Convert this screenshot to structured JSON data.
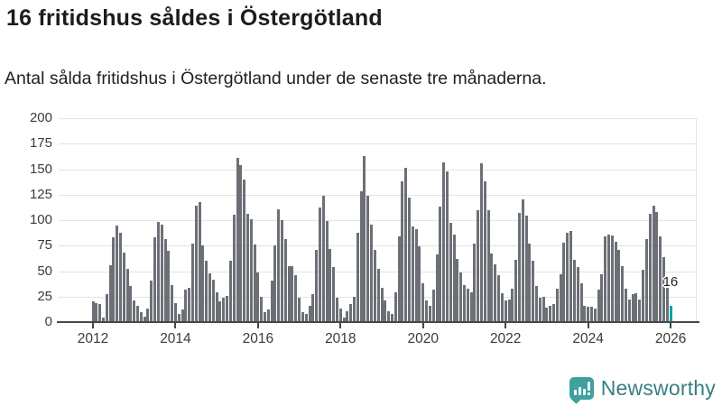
{
  "header": {
    "title": "16 fritidshus såldes i Östergötland",
    "subtitle": "Antal sålda fritidshus i Östergötland under de senaste tre månaderna."
  },
  "chart_data": {
    "type": "bar",
    "title": "16 fritidshus såldes i Östergötland",
    "xlabel": "",
    "ylabel": "",
    "x_start": "2012-01",
    "frequency": "monthly",
    "ylim": [
      0,
      200
    ],
    "y_ticks": [
      0,
      25,
      50,
      75,
      100,
      125,
      150,
      175,
      200
    ],
    "x_ticks": [
      2012,
      2014,
      2016,
      2018,
      2020,
      2022,
      2024,
      2026
    ],
    "grid": true,
    "legend": "none",
    "bar_color": "#6c7076",
    "highlight_color": "#10a3a5",
    "highlight_index": 168,
    "highlight_value": 16,
    "annotation": "16",
    "values": [
      20,
      19,
      18,
      4,
      27,
      56,
      83,
      95,
      88,
      68,
      52,
      35,
      21,
      16,
      10,
      5,
      13,
      41,
      83,
      98,
      96,
      81,
      70,
      36,
      19,
      8,
      12,
      32,
      34,
      77,
      114,
      118,
      75,
      60,
      48,
      42,
      29,
      20,
      24,
      26,
      60,
      105,
      161,
      154,
      140,
      106,
      101,
      76,
      49,
      25,
      10,
      12,
      41,
      75,
      111,
      100,
      81,
      55,
      55,
      46,
      24,
      10,
      8,
      16,
      27,
      71,
      112,
      124,
      99,
      72,
      54,
      24,
      13,
      4,
      11,
      18,
      25,
      88,
      128,
      163,
      124,
      96,
      71,
      52,
      34,
      21,
      11,
      8,
      29,
      84,
      138,
      151,
      122,
      94,
      91,
      74,
      38,
      21,
      16,
      32,
      66,
      113,
      157,
      148,
      97,
      86,
      62,
      49,
      36,
      33,
      29,
      77,
      110,
      156,
      138,
      110,
      67,
      57,
      46,
      28,
      21,
      22,
      33,
      61,
      107,
      120,
      104,
      77,
      60,
      35,
      24,
      25,
      14,
      16,
      18,
      33,
      47,
      78,
      88,
      89,
      61,
      54,
      38,
      16,
      15,
      15,
      13,
      32,
      47,
      84,
      86,
      85,
      79,
      71,
      55,
      33,
      22,
      27,
      28,
      22,
      51,
      81,
      106,
      114,
      108,
      84,
      64,
      40,
      16
    ]
  },
  "branding": {
    "logo_text": "Newsworthy",
    "logo_icon": "newsworthy-speech-bubble-barchart-icon",
    "logo_color": "#3fa0a0",
    "logo_text_color": "#35807f"
  }
}
